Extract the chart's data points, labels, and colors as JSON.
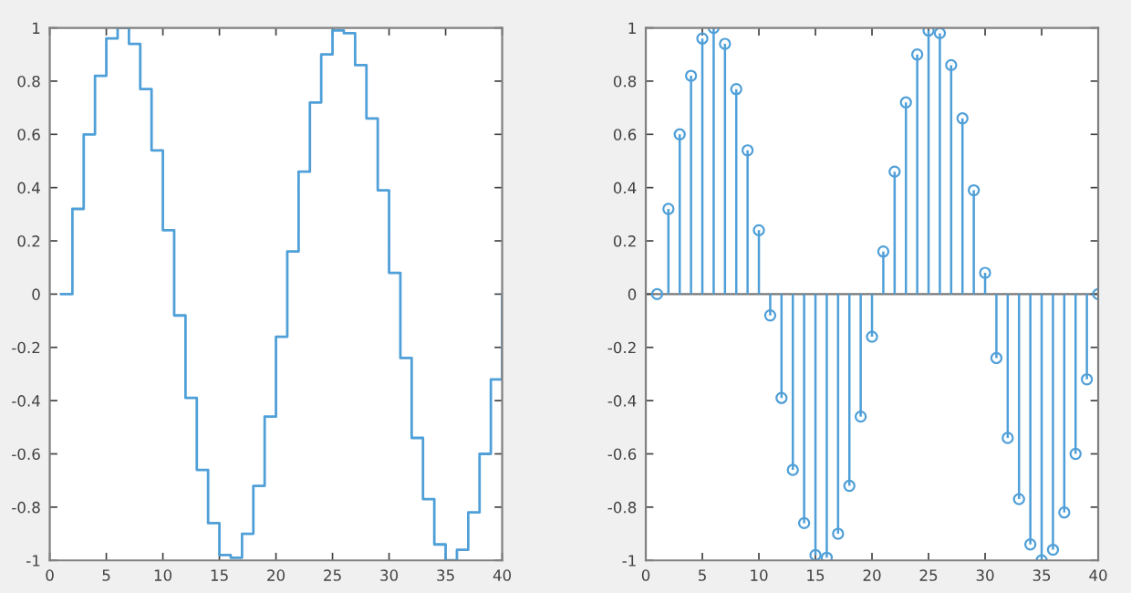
{
  "chart_data": [
    {
      "type": "step",
      "x": [
        1,
        2,
        3,
        4,
        5,
        6,
        7,
        8,
        9,
        10,
        11,
        12,
        13,
        14,
        15,
        16,
        17,
        18,
        19,
        20,
        21,
        22,
        23,
        24,
        25,
        26,
        27,
        28,
        29,
        30,
        31,
        32,
        33,
        34,
        35,
        36,
        37,
        38,
        39,
        40
      ],
      "values": [
        0,
        0.32,
        0.6,
        0.82,
        0.96,
        1.0,
        0.94,
        0.77,
        0.54,
        0.24,
        -0.08,
        -0.39,
        -0.66,
        -0.86,
        -0.98,
        -0.99,
        -0.9,
        -0.72,
        -0.46,
        -0.16,
        0.16,
        0.46,
        0.72,
        0.9,
        0.99,
        0.98,
        0.86,
        0.66,
        0.39,
        0.08,
        -0.24,
        -0.54,
        -0.77,
        -0.94,
        -1.0,
        -0.96,
        -0.82,
        -0.6,
        -0.32,
        0
      ],
      "color": "#4f9fd8",
      "xlim": [
        0,
        40
      ],
      "ylim": [
        -1,
        1
      ],
      "xticks": [
        0,
        5,
        10,
        15,
        20,
        25,
        30,
        35,
        40
      ],
      "yticks": [
        -1,
        -0.8,
        -0.6,
        -0.4,
        -0.2,
        0,
        0.2,
        0.4,
        0.6,
        0.8,
        1
      ],
      "grid": false
    },
    {
      "type": "lollipop",
      "x": [
        1,
        2,
        3,
        4,
        5,
        6,
        7,
        8,
        9,
        10,
        11,
        12,
        13,
        14,
        15,
        16,
        17,
        18,
        19,
        20,
        21,
        22,
        23,
        24,
        25,
        26,
        27,
        28,
        29,
        30,
        31,
        32,
        33,
        34,
        35,
        36,
        37,
        38,
        39,
        40
      ],
      "values": [
        0,
        0.32,
        0.6,
        0.82,
        0.96,
        1.0,
        0.94,
        0.77,
        0.54,
        0.24,
        -0.08,
        -0.39,
        -0.66,
        -0.86,
        -0.98,
        -0.99,
        -0.9,
        -0.72,
        -0.46,
        -0.16,
        0.16,
        0.46,
        0.72,
        0.9,
        0.99,
        0.98,
        0.86,
        0.66,
        0.39,
        0.08,
        -0.24,
        -0.54,
        -0.77,
        -0.94,
        -1.0,
        -0.96,
        -0.82,
        -0.6,
        -0.32,
        0
      ],
      "color": "#4f9fd8",
      "marker": "circle",
      "ref_lines": [
        {
          "axis": "y",
          "value": 0,
          "color": "#777777"
        }
      ],
      "xlim": [
        0,
        40
      ],
      "ylim": [
        -1,
        1
      ],
      "xticks": [
        0,
        5,
        10,
        15,
        20,
        25,
        30,
        35,
        40
      ],
      "yticks": [
        -1,
        -0.8,
        -0.6,
        -0.4,
        -0.2,
        0,
        0.2,
        0.4,
        0.6,
        0.8,
        1
      ],
      "grid": false
    }
  ]
}
